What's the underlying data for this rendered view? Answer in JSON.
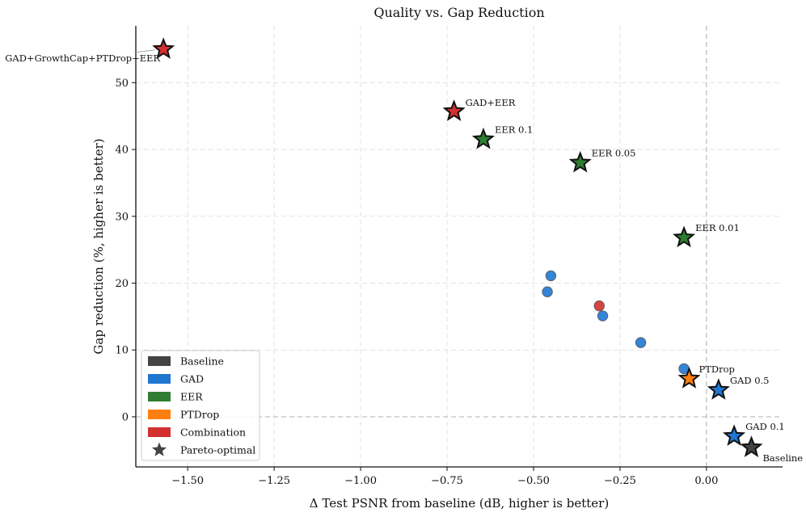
{
  "chart_data": {
    "type": "scatter",
    "title": "Quality vs. Gap Reduction",
    "xlabel": "Δ Test PSNR from baseline (dB, higher is better)",
    "ylabel": "Gap reduction (%, higher is better)",
    "xlim": [
      -1.65,
      0.22
    ],
    "ylim": [
      -7.5,
      58.5
    ],
    "xticks": [
      -1.5,
      -1.25,
      -1.0,
      -0.75,
      -0.5,
      -0.25,
      0.0
    ],
    "xtick_labels": [
      "−1.50",
      "−1.25",
      "−1.00",
      "−0.75",
      "−0.50",
      "−0.25",
      "0.00"
    ],
    "yticks": [
      0,
      10,
      20,
      30,
      40,
      50
    ],
    "ytick_labels": [
      "0",
      "10",
      "20",
      "30",
      "40",
      "50"
    ],
    "grid": true,
    "reference_lines": {
      "x": 0,
      "y": 0
    },
    "legend_position": "lower-left",
    "colors": {
      "Baseline": "#444444",
      "GAD": "#1f77d2",
      "EER": "#2e7d32",
      "PTDrop": "#ff7f0e",
      "Combination": "#d32f2f"
    },
    "legend": [
      {
        "label": "Baseline",
        "marker": "patch",
        "group": "Baseline"
      },
      {
        "label": "GAD",
        "marker": "patch",
        "group": "GAD"
      },
      {
        "label": "EER",
        "marker": "patch",
        "group": "EER"
      },
      {
        "label": "PTDrop",
        "marker": "patch",
        "group": "PTDrop"
      },
      {
        "label": "Combination",
        "marker": "patch",
        "group": "Combination"
      },
      {
        "label": "Pareto-optimal",
        "marker": "star",
        "group": "Baseline"
      }
    ],
    "points": [
      {
        "x": -1.57,
        "y": 55.0,
        "group": "Combination",
        "pareto": true,
        "label": "GAD+GrowthCap+PTDrop+EER"
      },
      {
        "x": -0.73,
        "y": 45.7,
        "group": "Combination",
        "pareto": true,
        "label": "GAD+EER"
      },
      {
        "x": -0.645,
        "y": 41.5,
        "group": "EER",
        "pareto": true,
        "label": "EER 0.1"
      },
      {
        "x": -0.365,
        "y": 38.0,
        "group": "EER",
        "pareto": true,
        "label": "EER 0.05"
      },
      {
        "x": -0.065,
        "y": 26.8,
        "group": "EER",
        "pareto": true,
        "label": "EER 0.01"
      },
      {
        "x": -0.45,
        "y": 21.1,
        "group": "GAD",
        "pareto": false,
        "label": ""
      },
      {
        "x": -0.46,
        "y": 18.7,
        "group": "GAD",
        "pareto": false,
        "label": ""
      },
      {
        "x": -0.31,
        "y": 16.6,
        "group": "Combination",
        "pareto": false,
        "label": ""
      },
      {
        "x": -0.3,
        "y": 15.1,
        "group": "GAD",
        "pareto": false,
        "label": ""
      },
      {
        "x": -0.19,
        "y": 11.1,
        "group": "GAD",
        "pareto": false,
        "label": ""
      },
      {
        "x": -0.065,
        "y": 7.2,
        "group": "GAD",
        "pareto": false,
        "label": ""
      },
      {
        "x": -0.05,
        "y": 5.7,
        "group": "PTDrop",
        "pareto": true,
        "label": "PTDrop"
      },
      {
        "x": 0.035,
        "y": 4.0,
        "group": "GAD",
        "pareto": true,
        "label": "GAD 0.5"
      },
      {
        "x": 0.08,
        "y": -2.9,
        "group": "GAD",
        "pareto": true,
        "label": "GAD 0.1"
      },
      {
        "x": 0.13,
        "y": -4.6,
        "group": "Baseline",
        "pareto": true,
        "label": "Baseline"
      }
    ]
  }
}
